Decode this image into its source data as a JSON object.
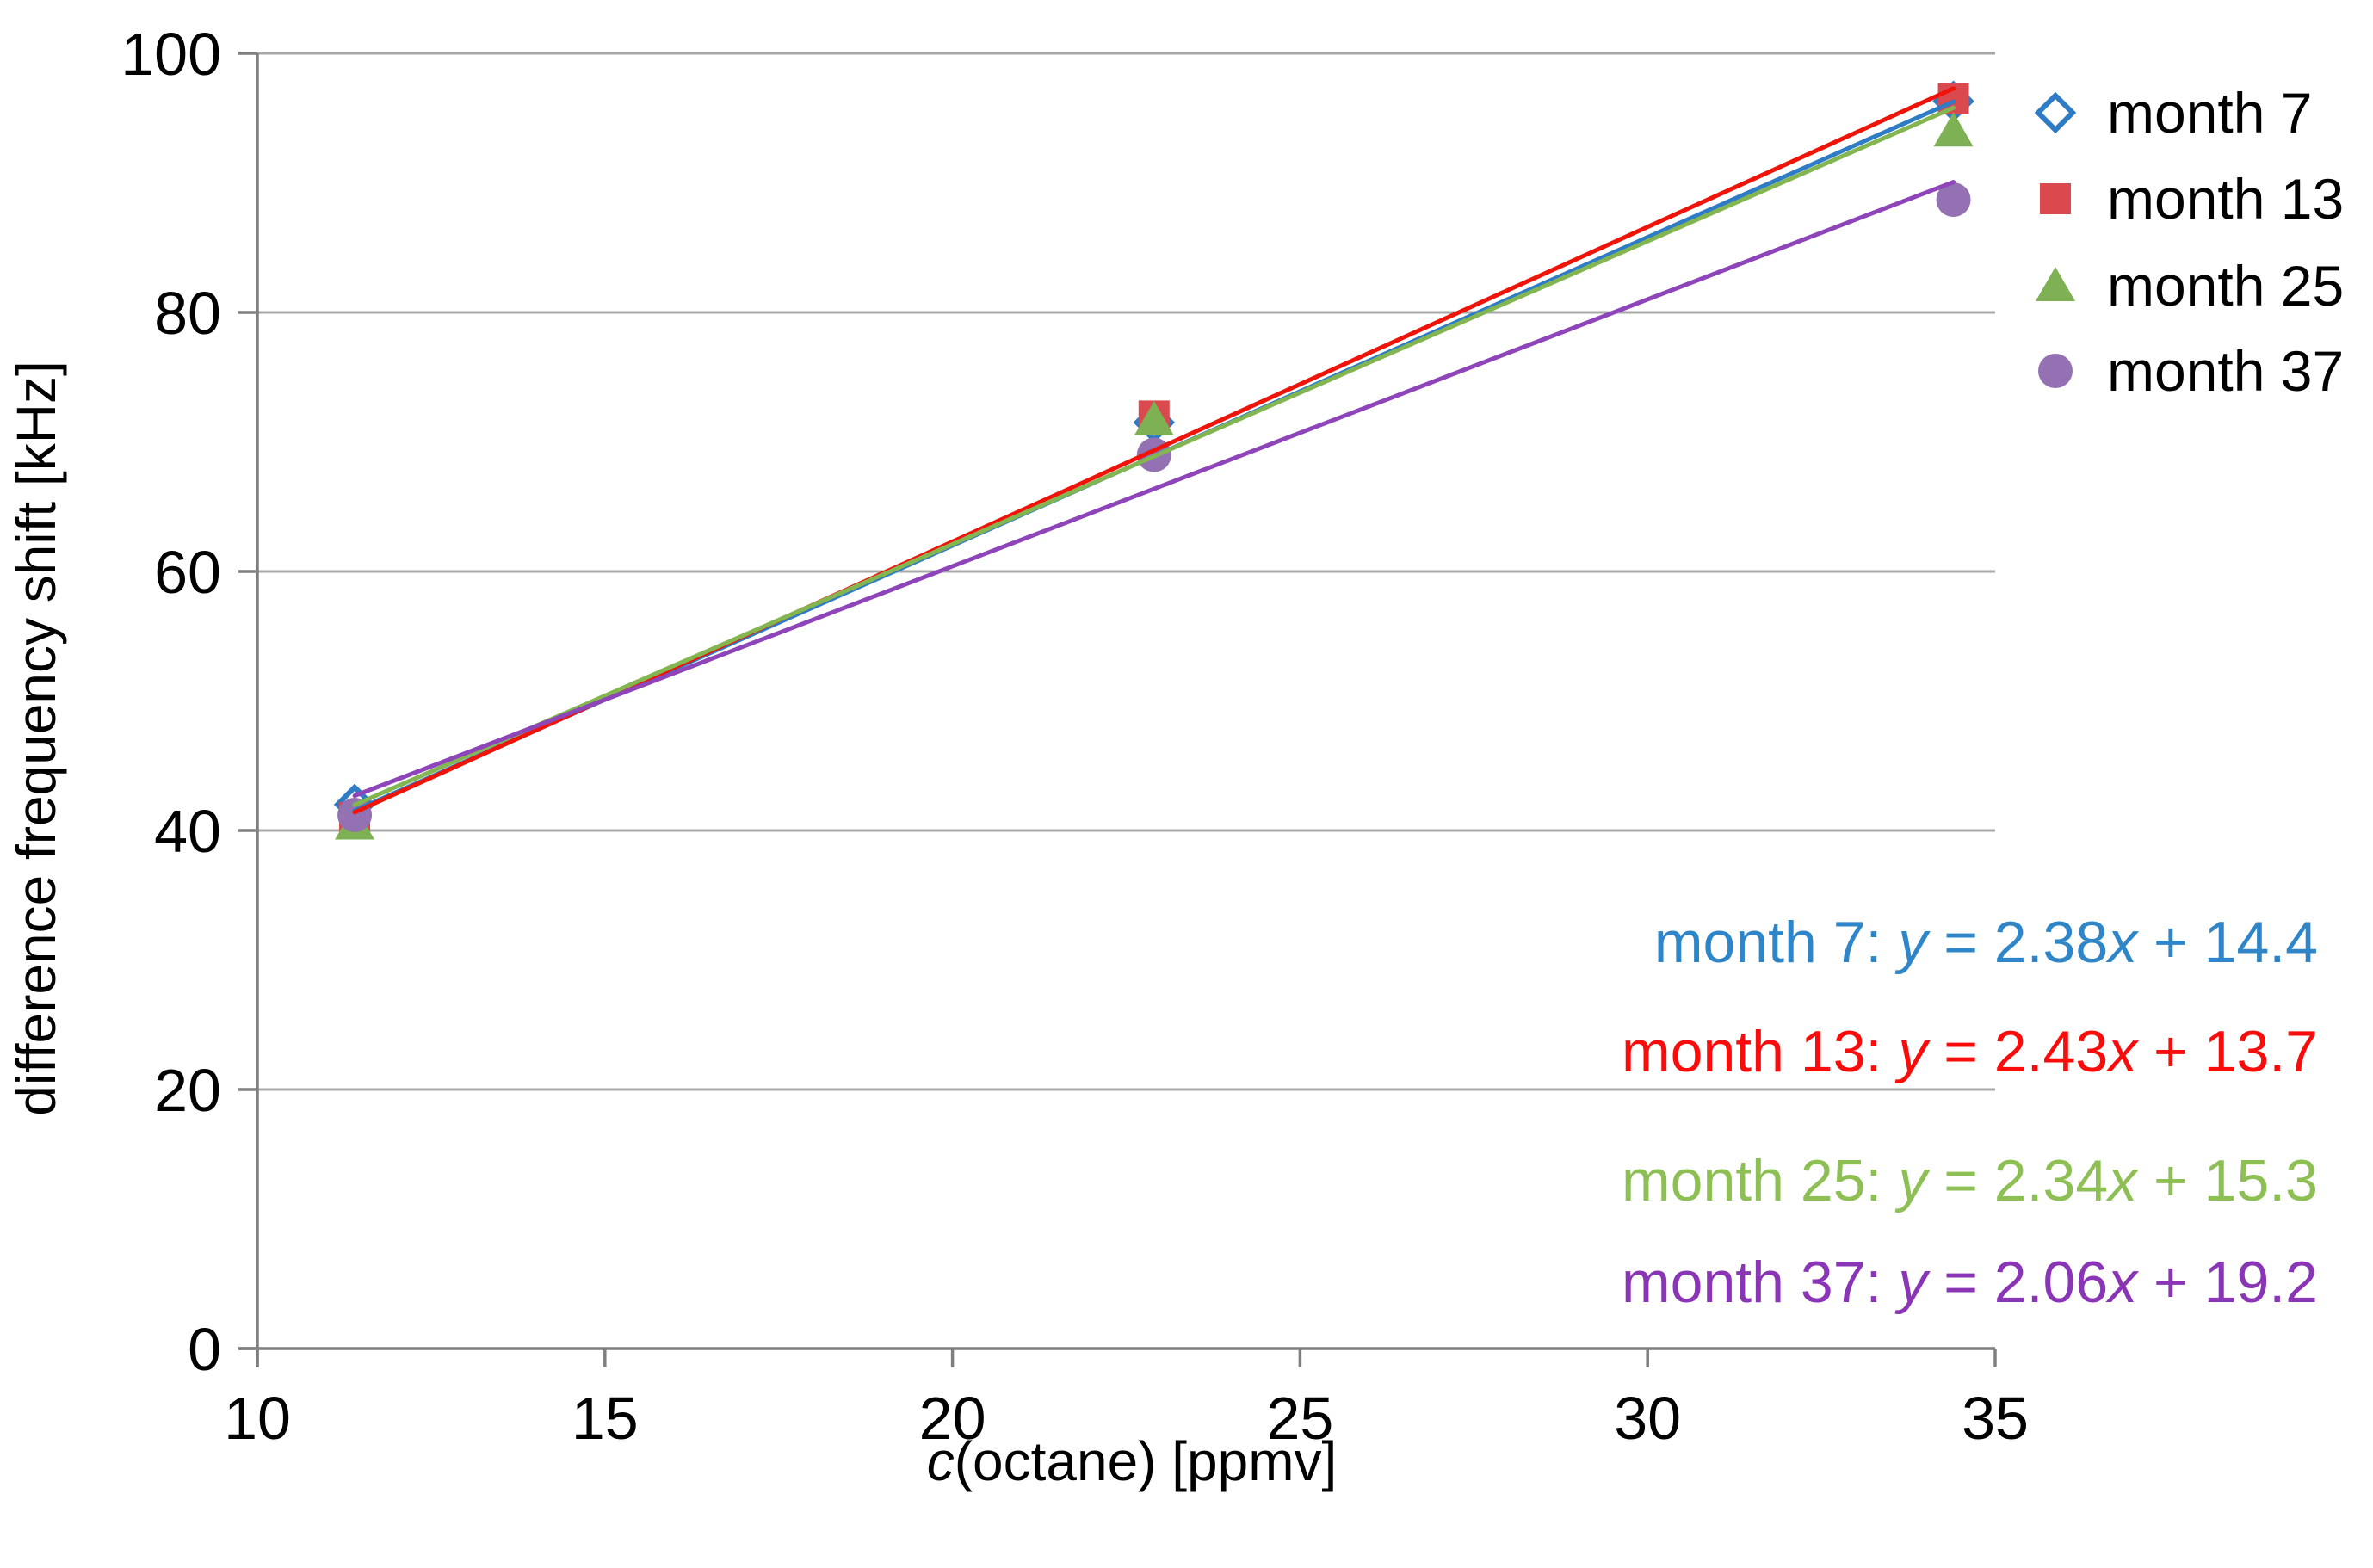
{
  "chart_data": {
    "type": "scatter",
    "title": "",
    "xlabel_italic": "c",
    "xlabel_rest": "(octane) [ppmv]",
    "xlabel_full": "c(octane) [ppmv]",
    "ylabel": "difference frequency shift [kHz]",
    "xlim": [
      10,
      35
    ],
    "ylim": [
      0,
      100
    ],
    "x_ticks": [
      10,
      15,
      20,
      25,
      30,
      35
    ],
    "y_ticks": [
      0,
      20,
      40,
      60,
      80,
      100
    ],
    "grid": "horizontal-only",
    "legend_position": "top-right",
    "x": [
      11.4,
      22.9,
      34.4
    ],
    "trendline_x_range": [
      11.4,
      34.4
    ],
    "series": [
      {
        "name": "month 7",
        "marker": "diamond-open",
        "color": "#2E7CC5",
        "line_color": "#2E7CC5",
        "eq_color": "#2E86C9",
        "values": [
          42.0,
          71.5,
          96.3
        ],
        "fit": {
          "slope": "2.38",
          "intercept": "14.4"
        },
        "equation_text": "month 7: y = 2.38x + 14.4"
      },
      {
        "name": "month 13",
        "marker": "square",
        "color": "#D9494E",
        "line_color": "#EE1409",
        "eq_color": "#F90C0C",
        "values": [
          41.0,
          72.0,
          96.5
        ],
        "fit": {
          "slope": "2.43",
          "intercept": "13.7"
        },
        "equation_text": "month 13: y = 2.43x + 13.7"
      },
      {
        "name": "month 25",
        "marker": "triangle",
        "color": "#7DB153",
        "line_color": "#83B551",
        "eq_color": "#8DBF55",
        "values": [
          40.5,
          71.7,
          94.0
        ],
        "fit": {
          "slope": "2.34",
          "intercept": "15.3"
        },
        "equation_text": "month 25: y = 2.34x + 15.3"
      },
      {
        "name": "month 37",
        "marker": "circle",
        "color": "#9471B3",
        "line_color": "#8D45B9",
        "eq_color": "#8A35B5",
        "values": [
          41.2,
          69.0,
          88.7
        ],
        "fit": {
          "slope": "2.06",
          "intercept": "19.2"
        },
        "equation_text": "month 37: y = 2.06x + 19.2"
      }
    ]
  },
  "colors": {
    "background": "#FFFFFF",
    "grid": "#A8A8A8",
    "axis": "#7F7F7F",
    "text": "#000000"
  }
}
